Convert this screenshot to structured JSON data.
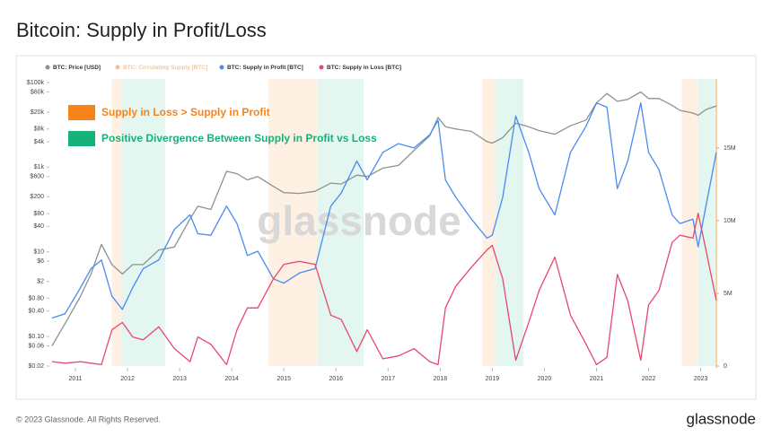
{
  "chart_data": {
    "type": "line",
    "title": "Bitcoin: Supply in Profit/Loss",
    "watermark": "glassnode",
    "footer": "© 2023 Glassnode. All Rights Reserved.",
    "brand": "glassnode",
    "x": [
      2010.55,
      2010.8,
      2011.1,
      2011.3,
      2011.5,
      2011.7,
      2011.9,
      2012.1,
      2012.3,
      2012.6,
      2012.9,
      2013.2,
      2013.35,
      2013.6,
      2013.9,
      2014.1,
      2014.3,
      2014.5,
      2014.8,
      2015.0,
      2015.3,
      2015.6,
      2015.9,
      2016.1,
      2016.4,
      2016.6,
      2016.9,
      2017.2,
      2017.5,
      2017.8,
      2017.96,
      2018.1,
      2018.3,
      2018.6,
      2018.9,
      2019.0,
      2019.2,
      2019.45,
      2019.7,
      2019.9,
      2020.2,
      2020.5,
      2020.8,
      2021.0,
      2021.2,
      2021.4,
      2021.6,
      2021.85,
      2022.0,
      2022.2,
      2022.45,
      2022.6,
      2022.85,
      2022.95,
      2023.1,
      2023.3
    ],
    "series": [
      {
        "name": "BTC: Price [USD]",
        "color": "#8a958c",
        "axis": "y",
        "values": [
          0.06,
          0.2,
          0.9,
          3,
          15,
          5,
          3,
          5,
          5,
          11,
          13,
          60,
          120,
          100,
          800,
          700,
          500,
          600,
          350,
          250,
          240,
          270,
          420,
          400,
          650,
          600,
          950,
          1100,
          2500,
          5500,
          15000,
          9000,
          8000,
          7000,
          4000,
          3700,
          5000,
          11000,
          9000,
          7300,
          6000,
          9500,
          13000,
          33000,
          55000,
          36000,
          40000,
          60000,
          42000,
          42000,
          29000,
          22000,
          19000,
          16800,
          23000,
          28000
        ]
      },
      {
        "name": "BTC: Circulating Supply [BTC]",
        "color": "#f5c28f",
        "visible": false
      },
      {
        "name": "BTC: Supply in Profit [BTC]",
        "color": "#4a8af0",
        "axis": "y2",
        "values": [
          3300000,
          3600000,
          5400000,
          6700000,
          7300000,
          4800000,
          3900000,
          5400000,
          6700000,
          7300000,
          9400000,
          10400000,
          9100000,
          9000000,
          11000000,
          9800000,
          7600000,
          7900000,
          6000000,
          5700000,
          6400000,
          6700000,
          11000000,
          11900000,
          14100000,
          12800000,
          14700000,
          15300000,
          15000000,
          15900000,
          16900000,
          12800000,
          11600000,
          10100000,
          8800000,
          9000000,
          11600000,
          17200000,
          14700000,
          12200000,
          10400000,
          14700000,
          16500000,
          18100000,
          17800000,
          12200000,
          14100000,
          18100000,
          14700000,
          13500000,
          10400000,
          9800000,
          10100000,
          8200000,
          11000000,
          14700000
        ]
      },
      {
        "name": "BTC: Supply in Loss [BTC]",
        "color": "#e8476f",
        "axis": "y2",
        "values": [
          300000,
          200000,
          300000,
          200000,
          100000,
          2500000,
          3000000,
          2000000,
          1800000,
          2700000,
          1200000,
          300000,
          2000000,
          1500000,
          100000,
          2500000,
          4000000,
          4000000,
          6000000,
          7000000,
          7200000,
          7000000,
          3500000,
          3200000,
          1000000,
          2500000,
          500000,
          700000,
          1200000,
          300000,
          100000,
          4000000,
          5500000,
          6800000,
          8000000,
          8300000,
          6000000,
          400000,
          3000000,
          5200000,
          7500000,
          3500000,
          1500000,
          100000,
          600000,
          6300000,
          4500000,
          400000,
          4200000,
          5200000,
          8500000,
          9000000,
          8800000,
          10500000,
          8000000,
          4500000
        ]
      }
    ],
    "regions": [
      {
        "name": "Supply in Loss > Supply in Profit",
        "color": "#f7841a",
        "spans": [
          [
            2011.7,
            2011.88
          ],
          [
            2014.7,
            2015.65
          ],
          [
            2018.81,
            2019.07
          ],
          [
            2022.64,
            2022.95
          ]
        ]
      },
      {
        "name": "Positive Divergence Between Supply in Profit vs Loss",
        "color": "#17b27a",
        "spans": [
          [
            2011.88,
            2012.72
          ],
          [
            2015.65,
            2016.53
          ],
          [
            2019.07,
            2019.6
          ],
          [
            2022.95,
            2023.28
          ]
        ]
      }
    ],
    "xlim": [
      2010.5,
      2023.3
    ],
    "xticks": [
      2011,
      2012,
      2013,
      2014,
      2015,
      2016,
      2017,
      2018,
      2019,
      2020,
      2021,
      2022,
      2023
    ],
    "ylog": true,
    "ylim": [
      0.02,
      100000
    ],
    "yticks": [
      {
        "value": 100000,
        "label": "$100k"
      },
      {
        "value": 60000,
        "label": "$60k"
      },
      {
        "value": 20000,
        "label": "$20k"
      },
      {
        "value": 8000,
        "label": "$8k"
      },
      {
        "value": 4000,
        "label": "$4k"
      },
      {
        "value": 1000,
        "label": "$1k"
      },
      {
        "value": 600,
        "label": "$600"
      },
      {
        "value": 200,
        "label": "$200"
      },
      {
        "value": 80,
        "label": "$80"
      },
      {
        "value": 40,
        "label": "$40"
      },
      {
        "value": 10,
        "label": "$10"
      },
      {
        "value": 6,
        "label": "$6"
      },
      {
        "value": 2,
        "label": "$2"
      },
      {
        "value": 0.8,
        "label": "$0.80"
      },
      {
        "value": 0.4,
        "label": "$0.40"
      },
      {
        "value": 0.1,
        "label": "$0.10"
      },
      {
        "value": 0.06,
        "label": "$0.06"
      },
      {
        "value": 0.02,
        "label": "$0.02"
      }
    ],
    "y2lim": [
      0,
      19500000
    ],
    "y2ticks": [
      0,
      {
        "value": 5000000,
        "label": "5M"
      },
      {
        "value": 10000000,
        "label": "10M"
      },
      {
        "value": 15000000,
        "label": "15M"
      }
    ]
  }
}
